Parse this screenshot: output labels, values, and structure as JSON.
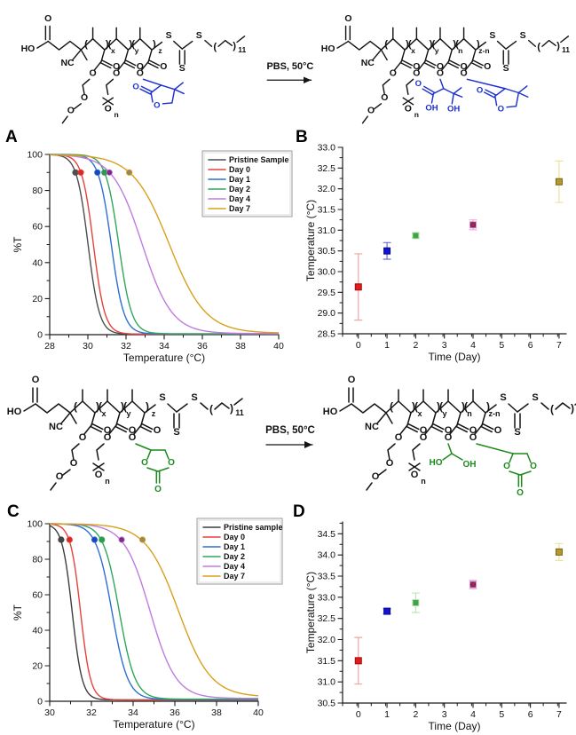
{
  "figure": {
    "panel_labels": {
      "a": "A",
      "b": "B",
      "c": "C",
      "d": "D"
    }
  },
  "schemes": [
    {
      "id": "top",
      "ring_type": "lactone",
      "ring_color": "#1b2fd0",
      "reagent": "PBS, 50°C",
      "labels": {
        "ho": "HO",
        "oxygen": "O",
        "nitrile": "NC",
        "sulfur": "S",
        "sub_x": "x",
        "sub_y": "y",
        "sub_z": "z",
        "sub_n": "n",
        "sub_zn": "z-n",
        "chain_repeat": "11",
        "hydroxyl": "OH",
        "second_hydroxyl": "OH"
      }
    },
    {
      "id": "bottom",
      "ring_type": "carbonate",
      "ring_color": "#1c8a1c",
      "reagent": "PBS, 50°C",
      "labels": {
        "ho": "HO",
        "oxygen": "O",
        "nitrile": "NC",
        "sulfur": "S",
        "sub_x": "x",
        "sub_y": "y",
        "sub_z": "z",
        "sub_n": "n",
        "sub_zn": "z-n",
        "chain_repeat": "11",
        "hydroxyl": "OH",
        "diol_ho": "HO"
      }
    }
  ],
  "chart_data": [
    {
      "panel": "A",
      "type": "line",
      "xlabel": "Temperature (°C)",
      "ylabel": "%T",
      "xlim": [
        28,
        40
      ],
      "ylim": [
        0,
        100
      ],
      "xticks": [
        28,
        30,
        32,
        34,
        36,
        38,
        40
      ],
      "yticks": [
        0,
        20,
        40,
        60,
        80,
        100
      ],
      "x_minor_step": 1,
      "y_minor_step": 10,
      "grid": false,
      "legend_position": "top-right",
      "marker_at_pct_t": 90,
      "series": [
        {
          "name": "Pristine Sample",
          "color": "#4d4d4d",
          "marker_color": "#4f4f4f",
          "cloud_point_c": 29.35,
          "transition_width_c": 0.3,
          "baseline_pct": 0.3
        },
        {
          "name": "Day 0",
          "color": "#e8413a",
          "marker_color": "#d92a22",
          "cloud_point_c": 29.63,
          "transition_width_c": 0.3,
          "baseline_pct": 0.3
        },
        {
          "name": "Day 1",
          "color": "#2d6fd2",
          "marker_color": "#1c44c2",
          "cloud_point_c": 30.5,
          "transition_width_c": 0.33,
          "baseline_pct": 0.4
        },
        {
          "name": "Day 2",
          "color": "#2fa65c",
          "marker_color": "#2e9a4e",
          "cloud_point_c": 30.87,
          "transition_width_c": 0.34,
          "baseline_pct": 0.5
        },
        {
          "name": "Day 4",
          "color": "#c07be0",
          "marker_color": "#7c2b7f",
          "cloud_point_c": 31.13,
          "transition_width_c": 0.78,
          "baseline_pct": 0.6
        },
        {
          "name": "Day 7",
          "color": "#d8a01d",
          "marker_color": "#97885a",
          "cloud_point_c": 32.17,
          "transition_width_c": 0.95,
          "baseline_pct": 0.8
        }
      ]
    },
    {
      "panel": "B",
      "type": "scatter",
      "xlabel": "Time (Day)",
      "ylabel": "Temperature (°C)",
      "xlim": [
        -0.55,
        7.25
      ],
      "ylim": [
        28.5,
        33.0
      ],
      "xticks": [
        0,
        1,
        2,
        3,
        4,
        5,
        6,
        7
      ],
      "yticks": [
        28.5,
        29.0,
        29.5,
        30.0,
        30.5,
        31.0,
        31.5,
        32.0,
        32.5,
        33.0
      ],
      "x_minor_step": 0.5,
      "y_minor_step": 0.25,
      "ytick_decimals": 1,
      "grid": false,
      "points": [
        {
          "day": 0,
          "temp_c": 29.63,
          "err_c": 0.8,
          "fill": "#e31b1b",
          "edge": "#9e0b0b",
          "err_color": "#f0a6a1"
        },
        {
          "day": 1,
          "temp_c": 30.5,
          "err_c": 0.2,
          "fill": "#1414d0",
          "edge": "#0b0b8f",
          "err_color": "#7070dd"
        },
        {
          "day": 2,
          "temp_c": 30.87,
          "err_c": 0.05,
          "fill": "#3fa34a",
          "edge": "#b9e0b0",
          "err_color": "#b9e0b0"
        },
        {
          "day": 4,
          "temp_c": 31.13,
          "err_c": 0.12,
          "fill": "#56257f",
          "edge": "#d58ed0",
          "err_color": "#efb3d9",
          "center": "#e01f1f"
        },
        {
          "day": 7,
          "temp_c": 32.17,
          "err_c": 0.5,
          "fill": "#b3992e",
          "edge": "#776414",
          "err_color": "#ece29b"
        }
      ]
    },
    {
      "panel": "C",
      "type": "line",
      "xlabel": "Temperature (°C)",
      "ylabel": "%T",
      "xlim": [
        30,
        40
      ],
      "ylim": [
        0,
        100
      ],
      "xticks": [
        30,
        32,
        34,
        36,
        38,
        40
      ],
      "yticks": [
        0,
        20,
        40,
        60,
        80,
        100
      ],
      "x_minor_step": 1,
      "y_minor_step": 10,
      "grid": false,
      "legend_position": "top-right",
      "marker_at_pct_t": 91,
      "series": [
        {
          "name": "Pristine sample",
          "color": "#3d3d3d",
          "marker_color": "#444444",
          "cloud_point_c": 30.55,
          "transition_width_c": 0.24,
          "baseline_pct": 0.8
        },
        {
          "name": "Day 0",
          "color": "#e8413a",
          "marker_color": "#d92a22",
          "cloud_point_c": 30.95,
          "transition_width_c": 0.24,
          "baseline_pct": 0.8
        },
        {
          "name": "Day 1",
          "color": "#2d6fd2",
          "marker_color": "#1c44c2",
          "cloud_point_c": 32.15,
          "transition_width_c": 0.38,
          "baseline_pct": 1.0
        },
        {
          "name": "Day 2",
          "color": "#2fa65c",
          "marker_color": "#2e9a4e",
          "cloud_point_c": 32.5,
          "transition_width_c": 0.38,
          "baseline_pct": 1.2
        },
        {
          "name": "Day 4",
          "color": "#c07be0",
          "marker_color": "#7c2b7f",
          "cloud_point_c": 33.45,
          "transition_width_c": 0.62,
          "baseline_pct": 1.6
        },
        {
          "name": "Day 7",
          "color": "#d8a01d",
          "marker_color": "#97885a",
          "cloud_point_c": 34.45,
          "transition_width_c": 0.78,
          "baseline_pct": 2.4
        }
      ]
    },
    {
      "panel": "D",
      "type": "scatter",
      "xlabel": "Time (Day)",
      "ylabel": "Temperature (°C)",
      "xlim": [
        -0.55,
        7.25
      ],
      "ylim": [
        30.5,
        34.78
      ],
      "xticks": [
        0,
        1,
        2,
        3,
        4,
        5,
        6,
        7
      ],
      "yticks": [
        30.5,
        31.0,
        31.5,
        32.0,
        32.5,
        33.0,
        33.5,
        34.0,
        34.5
      ],
      "x_minor_step": 0.5,
      "y_minor_step": 0.25,
      "ytick_decimals": 1,
      "grid": false,
      "points": [
        {
          "day": 0,
          "temp_c": 31.5,
          "err_c": 0.55,
          "fill": "#e31b1b",
          "edge": "#9e0b0b",
          "err_color": "#f0a6a1"
        },
        {
          "day": 1,
          "temp_c": 32.67,
          "err_c": 0.06,
          "fill": "#1414d0",
          "edge": "#0b0b8f",
          "err_color": "#7070dd"
        },
        {
          "day": 2,
          "temp_c": 32.87,
          "err_c": 0.23,
          "fill": "#3fa34a",
          "edge": "#b9e0b0",
          "err_color": "#c4e4b9"
        },
        {
          "day": 4,
          "temp_c": 33.3,
          "err_c": 0.1,
          "fill": "#56257f",
          "edge": "#d58ed0",
          "err_color": "#efb3d9",
          "center": "#e01f1f"
        },
        {
          "day": 7,
          "temp_c": 34.07,
          "err_c": 0.2,
          "fill": "#b3992e",
          "edge": "#776414",
          "err_color": "#ece29b"
        }
      ]
    }
  ]
}
